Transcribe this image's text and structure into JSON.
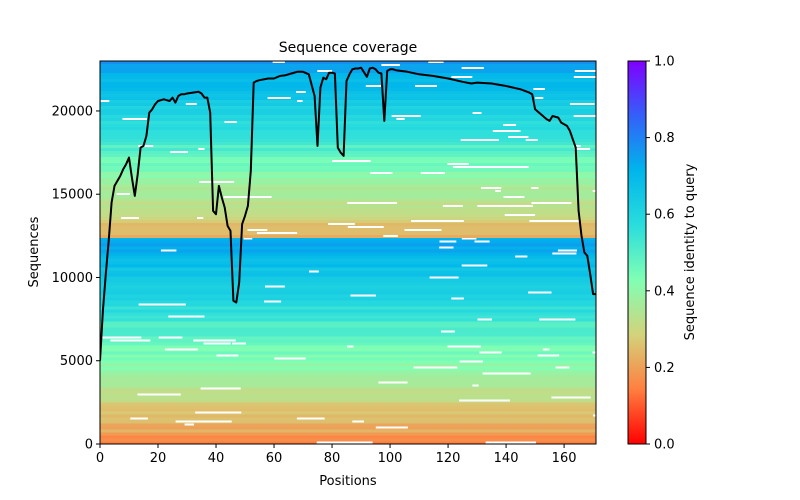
{
  "chart_data": {
    "type": "heatmap",
    "title": "Sequence coverage",
    "xlabel": "Positions",
    "ylabel": "Sequences",
    "xlim": [
      0,
      171
    ],
    "ylim": [
      0,
      23000
    ],
    "xticks": [
      0,
      20,
      40,
      60,
      80,
      100,
      120,
      140,
      160
    ],
    "xtick_labels": [
      "0",
      "20",
      "40",
      "60",
      "80",
      "100",
      "120",
      "140",
      "160"
    ],
    "yticks": [
      0,
      5000,
      10000,
      15000,
      20000
    ],
    "ytick_labels": [
      "0",
      "5000",
      "10000",
      "15000",
      "20000"
    ],
    "grid": false,
    "colorbar": {
      "label": "Sequence identity to query",
      "colormap": "rainbow_r",
      "range": [
        0,
        1
      ],
      "ticks": [
        0.0,
        0.2,
        0.4,
        0.6,
        0.8,
        1.0
      ],
      "tick_labels": [
        "0.0",
        "0.2",
        "0.4",
        "0.6",
        "0.8",
        "1.0"
      ],
      "stops": [
        "#ff0000",
        "#ff7f40",
        "#d3d37b",
        "#80ffb4",
        "#2adddd",
        "#00b5eb",
        "#3460f9",
        "#8000ff"
      ]
    },
    "heatmap_blocks": [
      {
        "name": "block-lower",
        "seq_range": [
          0,
          12400
        ],
        "identity_bottom": 0.15,
        "identity_top": 0.75
      },
      {
        "name": "block-upper",
        "seq_range": [
          12400,
          23000
        ],
        "identity_bottom": 0.2,
        "identity_top": 0.75
      }
    ],
    "series": [
      {
        "name": "coverage",
        "color": "#000000",
        "x": [
          0,
          1,
          2,
          3,
          4,
          5,
          6,
          7,
          8,
          9,
          10,
          11,
          12,
          13,
          14,
          15,
          16,
          17,
          18,
          19,
          20,
          22,
          24,
          25,
          26,
          27,
          28,
          29,
          30,
          32,
          34,
          35,
          36,
          37,
          38,
          39,
          40,
          41,
          42,
          43,
          44,
          45,
          46,
          47,
          48,
          49,
          50,
          51,
          52,
          53,
          54,
          55,
          58,
          60,
          62,
          64,
          66,
          68,
          70,
          72,
          74,
          75,
          76,
          77,
          78,
          79,
          80,
          81,
          82,
          83,
          84,
          85,
          86,
          87,
          88,
          89,
          90,
          92,
          93,
          94,
          95,
          96,
          97,
          98,
          99,
          100,
          101,
          102,
          104,
          106,
          110,
          115,
          120,
          125,
          128,
          130,
          135,
          140,
          145,
          148,
          149,
          150,
          152,
          154,
          155,
          156,
          158,
          159,
          160,
          161,
          162,
          163,
          164,
          165,
          166,
          167,
          168,
          169,
          170,
          171
        ],
        "y": [
          5000,
          8000,
          10200,
          12200,
          14500,
          15500,
          15800,
          16100,
          16500,
          16800,
          17200,
          16000,
          14900,
          16200,
          17800,
          17900,
          18500,
          19900,
          20100,
          20400,
          20600,
          20700,
          20600,
          20800,
          20500,
          20900,
          21000,
          21000,
          21050,
          21100,
          21150,
          21050,
          20800,
          20800,
          19900,
          14000,
          13800,
          15500,
          14800,
          14200,
          13100,
          12800,
          8600,
          8500,
          9700,
          13200,
          13700,
          14300,
          16400,
          21700,
          21800,
          21850,
          21950,
          21950,
          22100,
          22150,
          22250,
          22350,
          22350,
          22200,
          20900,
          17900,
          21400,
          22000,
          21900,
          22300,
          22300,
          22250,
          17800,
          17500,
          17300,
          21800,
          22200,
          22500,
          22550,
          22550,
          22600,
          22050,
          22550,
          22600,
          22500,
          22300,
          22250,
          19400,
          22400,
          22500,
          22500,
          22450,
          22400,
          22350,
          22200,
          22100,
          21950,
          21750,
          21650,
          21700,
          21650,
          21500,
          21300,
          21100,
          21000,
          20100,
          19800,
          19500,
          19400,
          19700,
          19600,
          19300,
          19200,
          19100,
          18800,
          18300,
          17800,
          14000,
          12500,
          11500,
          11300,
          10200,
          9000,
          9000
        ]
      }
    ]
  }
}
